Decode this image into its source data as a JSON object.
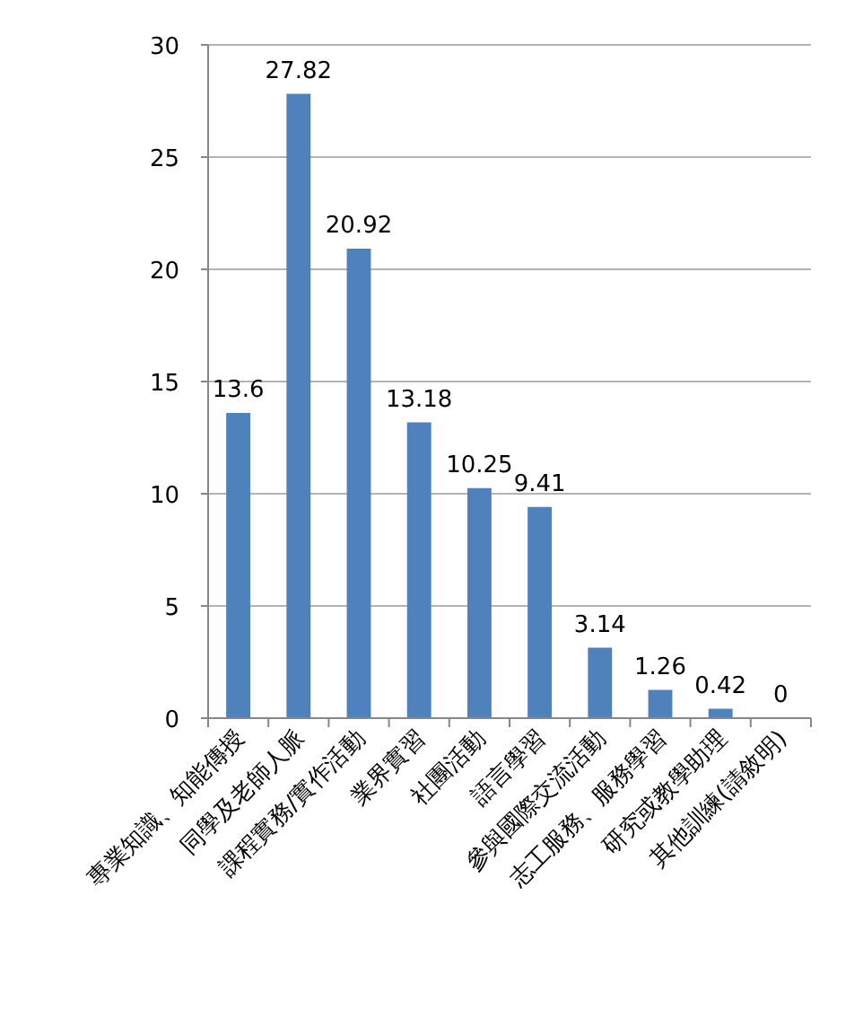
{
  "chart_data": {
    "type": "bar",
    "categories": [
      "專業知識、知能傳授",
      "同學及老師人脈",
      "課程實務/實作活動",
      "業界實習",
      "社團活動",
      "語言學習",
      "參與國際交流活動",
      "志工服務、服務學習",
      "研究或教學助理",
      "其他訓練(請敘明)"
    ],
    "values": [
      13.6,
      27.82,
      20.92,
      13.18,
      10.25,
      9.41,
      3.14,
      1.26,
      0.42,
      0
    ],
    "color": "#4f81bd",
    "ylim": [
      0,
      30
    ],
    "yticks": [
      0,
      5,
      10,
      15,
      20,
      25,
      30
    ],
    "grid": "y",
    "data_labels": true
  }
}
